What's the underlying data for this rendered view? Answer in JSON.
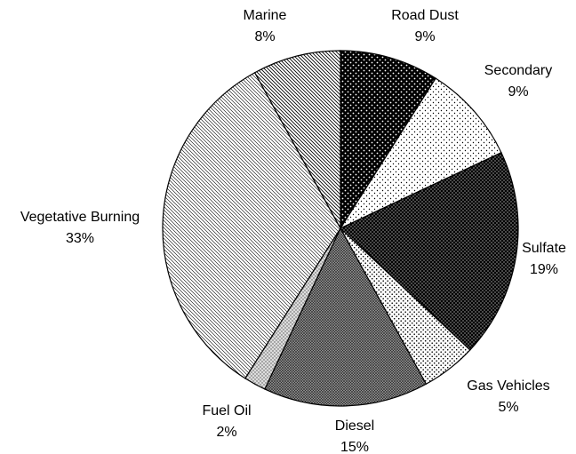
{
  "chart_data": {
    "type": "pie",
    "categories": [
      "Road Dust",
      "Secondary",
      "Sulfate",
      "Gas Vehicles",
      "Diesel",
      "Fuel Oil",
      "Vegetative Burning",
      "Marine"
    ],
    "values": [
      9,
      9,
      19,
      5,
      15,
      2,
      33,
      8
    ],
    "value_labels": [
      "9%",
      "9%",
      "19%",
      "5%",
      "15%",
      "2%",
      "33%",
      "8%"
    ]
  }
}
